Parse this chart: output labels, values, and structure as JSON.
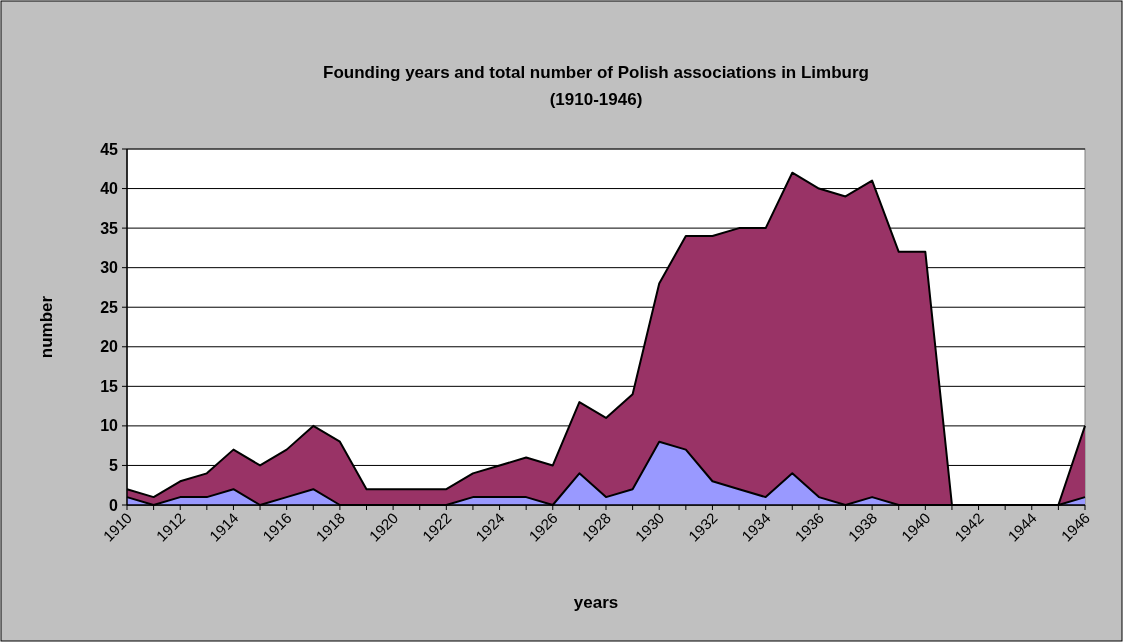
{
  "chart_data": {
    "type": "area",
    "title": "Founding years and total number of Polish associations in Limburg (1910-1946)",
    "xlabel": "years",
    "ylabel": "number",
    "categories": [
      "1910",
      null,
      "1912",
      null,
      "1914",
      null,
      "1916",
      null,
      "1918",
      null,
      "1920",
      null,
      "1922",
      null,
      "1924",
      null,
      "1926",
      null,
      "1928",
      null,
      "1930",
      null,
      "1932",
      null,
      "1934",
      null,
      "1936",
      null,
      "1938",
      null,
      "1940",
      null,
      "1942",
      null,
      "1944",
      null,
      "1946"
    ],
    "series": [
      {
        "color": "#993366",
        "values": [
          2,
          1,
          3,
          4,
          7,
          5,
          7,
          10,
          8,
          2,
          2,
          2,
          2,
          4,
          5,
          6,
          5,
          13,
          11,
          14,
          28,
          34,
          34,
          35,
          35,
          42,
          40,
          39,
          41,
          32,
          32,
          0,
          0,
          0,
          0,
          0,
          10
        ]
      },
      {
        "color": "#9999ff",
        "values": [
          1,
          0,
          1,
          1,
          2,
          0,
          1,
          2,
          0,
          0,
          0,
          0,
          0,
          1,
          1,
          1,
          0,
          4,
          1,
          2,
          8,
          7,
          3,
          2,
          1,
          4,
          1,
          0,
          1,
          0,
          0,
          0,
          0,
          0,
          0,
          0,
          1
        ]
      }
    ],
    "ylim": [
      0,
      45
    ],
    "yticks": [
      0,
      5,
      10,
      15,
      20,
      25,
      30,
      35,
      40,
      45
    ],
    "grid": "y"
  }
}
